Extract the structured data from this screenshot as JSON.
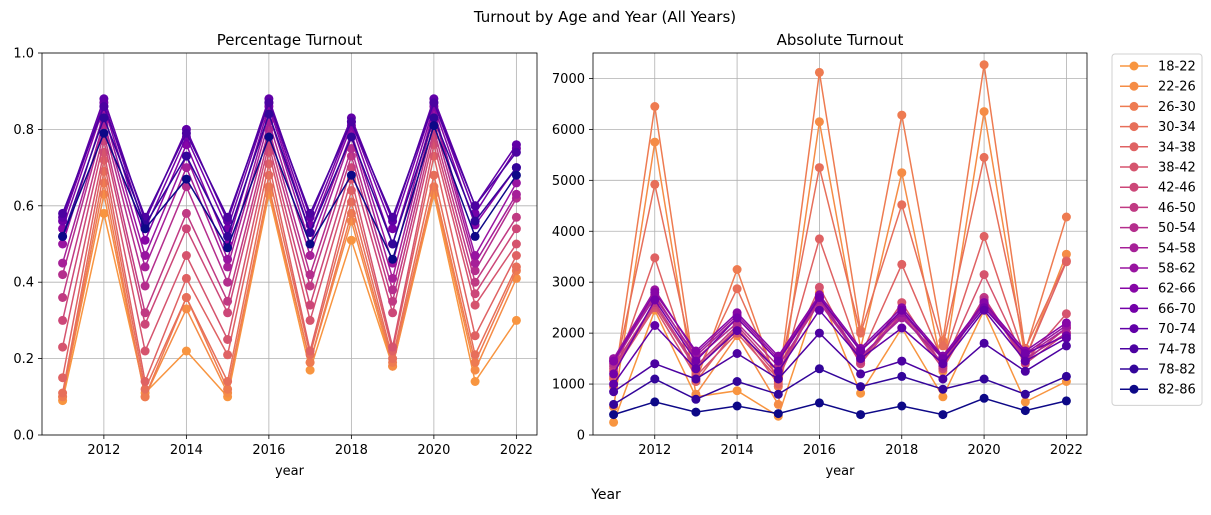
{
  "figure": {
    "title": "Turnout by Age and Year (All Years)",
    "supxlabel": "Year"
  },
  "chart_data": [
    {
      "type": "line",
      "title": "Percentage Turnout",
      "xlabel": "year",
      "ylabel": "",
      "xlim": [
        2010.5,
        2022.5
      ],
      "ylim": [
        0,
        1
      ],
      "xticks": [
        2012,
        2014,
        2016,
        2018,
        2020,
        2022
      ],
      "yticks": [
        0.0,
        0.2,
        0.4,
        0.6,
        0.8,
        1.0
      ],
      "ytick_labels": [
        "0.0",
        "0.2",
        "0.4",
        "0.6",
        "0.8",
        "1.0"
      ],
      "grid": true,
      "x": [
        2011,
        2012,
        2013,
        2014,
        2015,
        2016,
        2017,
        2018,
        2019,
        2020,
        2021,
        2022
      ],
      "series": [
        {
          "name": "18-22",
          "values": [
            0.09,
            0.58,
            0.11,
            0.22,
            0.1,
            0.63,
            0.17,
            0.51,
            0.18,
            0.63,
            0.14,
            0.3
          ]
        },
        {
          "name": "22-26",
          "values": [
            0.1,
            0.63,
            0.1,
            0.33,
            0.11,
            0.64,
            0.19,
            0.56,
            0.18,
            0.64,
            0.17,
            0.41
          ]
        },
        {
          "name": "26-30",
          "values": [
            0.1,
            0.66,
            0.1,
            0.36,
            0.12,
            0.65,
            0.19,
            0.58,
            0.19,
            0.65,
            0.19,
            0.43
          ]
        },
        {
          "name": "30-34",
          "values": [
            0.11,
            0.69,
            0.12,
            0.36,
            0.14,
            0.68,
            0.21,
            0.61,
            0.2,
            0.68,
            0.21,
            0.44
          ]
        },
        {
          "name": "34-38",
          "values": [
            0.15,
            0.72,
            0.14,
            0.41,
            0.21,
            0.71,
            0.22,
            0.64,
            0.22,
            0.73,
            0.26,
            0.47
          ]
        },
        {
          "name": "38-42",
          "values": [
            0.23,
            0.74,
            0.22,
            0.47,
            0.25,
            0.74,
            0.3,
            0.67,
            0.23,
            0.76,
            0.34,
            0.5
          ]
        },
        {
          "name": "42-46",
          "values": [
            0.3,
            0.77,
            0.29,
            0.54,
            0.32,
            0.76,
            0.34,
            0.7,
            0.32,
            0.78,
            0.37,
            0.54
          ]
        },
        {
          "name": "46-50",
          "values": [
            0.36,
            0.79,
            0.32,
            0.58,
            0.35,
            0.78,
            0.39,
            0.73,
            0.35,
            0.8,
            0.4,
            0.57
          ]
        },
        {
          "name": "50-54",
          "values": [
            0.42,
            0.81,
            0.39,
            0.65,
            0.4,
            0.8,
            0.42,
            0.75,
            0.38,
            0.82,
            0.43,
            0.62
          ]
        },
        {
          "name": "54-58",
          "values": [
            0.45,
            0.82,
            0.44,
            0.7,
            0.44,
            0.82,
            0.47,
            0.78,
            0.41,
            0.84,
            0.45,
            0.63
          ]
        },
        {
          "name": "58-62",
          "values": [
            0.5,
            0.84,
            0.47,
            0.73,
            0.46,
            0.84,
            0.5,
            0.79,
            0.45,
            0.85,
            0.47,
            0.66
          ]
        },
        {
          "name": "62-66",
          "values": [
            0.54,
            0.86,
            0.51,
            0.76,
            0.5,
            0.86,
            0.53,
            0.81,
            0.5,
            0.86,
            0.55,
            0.7
          ]
        },
        {
          "name": "66-70",
          "values": [
            0.56,
            0.87,
            0.54,
            0.78,
            0.54,
            0.87,
            0.55,
            0.82,
            0.54,
            0.87,
            0.58,
            0.75
          ]
        },
        {
          "name": "70-74",
          "values": [
            0.57,
            0.88,
            0.56,
            0.8,
            0.56,
            0.88,
            0.57,
            0.83,
            0.56,
            0.88,
            0.6,
            0.76
          ]
        },
        {
          "name": "74-78",
          "values": [
            0.58,
            0.86,
            0.57,
            0.79,
            0.57,
            0.87,
            0.58,
            0.82,
            0.57,
            0.87,
            0.6,
            0.74
          ]
        },
        {
          "name": "78-82",
          "values": [
            0.52,
            0.83,
            0.55,
            0.73,
            0.52,
            0.84,
            0.53,
            0.78,
            0.5,
            0.83,
            0.56,
            0.7
          ]
        },
        {
          "name": "82-86",
          "values": [
            0.52,
            0.79,
            0.54,
            0.67,
            0.49,
            0.78,
            0.5,
            0.68,
            0.46,
            0.81,
            0.52,
            0.68
          ]
        }
      ]
    },
    {
      "type": "line",
      "title": "Absolute Turnout",
      "xlabel": "year",
      "ylabel": "",
      "xlim": [
        2010.5,
        2022.5
      ],
      "ylim": [
        0,
        7500
      ],
      "xticks": [
        2012,
        2014,
        2016,
        2018,
        2020,
        2022
      ],
      "yticks": [
        0,
        1000,
        2000,
        3000,
        4000,
        5000,
        6000,
        7000
      ],
      "ytick_labels": [
        "0",
        "1000",
        "2000",
        "3000",
        "4000",
        "5000",
        "6000",
        "7000"
      ],
      "grid": true,
      "legend": "outside-right",
      "x": [
        2011,
        2012,
        2013,
        2014,
        2015,
        2016,
        2017,
        2018,
        2019,
        2020,
        2021,
        2022
      ],
      "series": [
        {
          "name": "18-22",
          "values": [
            250,
            2450,
            750,
            870,
            370,
            2800,
            820,
            2100,
            750,
            2450,
            650,
            1050
          ]
        },
        {
          "name": "22-26",
          "values": [
            550,
            5750,
            800,
            1950,
            600,
            6150,
            1700,
            5150,
            1250,
            6350,
            1500,
            3550
          ]
        },
        {
          "name": "26-30",
          "values": [
            950,
            6450,
            1050,
            3250,
            950,
            7120,
            2050,
            6280,
            1850,
            7270,
            1650,
            4280
          ]
        },
        {
          "name": "30-34",
          "values": [
            1100,
            4920,
            1200,
            2870,
            1050,
            5250,
            2000,
            4520,
            1750,
            5450,
            1700,
            3420
          ]
        },
        {
          "name": "34-38",
          "values": [
            1150,
            3480,
            1050,
            2100,
            1000,
            3850,
            1550,
            3350,
            1450,
            3900,
            1500,
            3400
          ]
        },
        {
          "name": "38-42",
          "values": [
            1250,
            2500,
            1150,
            2000,
            1100,
            2900,
            1400,
            2600,
            1350,
            3150,
            1450,
            2380
          ]
        },
        {
          "name": "42-46",
          "values": [
            1300,
            2550,
            1300,
            2100,
            1150,
            2750,
            1400,
            2400,
            1300,
            2700,
            1400,
            2000
          ]
        },
        {
          "name": "46-50",
          "values": [
            1350,
            2600,
            1350,
            2150,
            1250,
            2700,
            1450,
            2450,
            1350,
            2700,
            1450,
            2100
          ]
        },
        {
          "name": "50-54",
          "values": [
            1400,
            2750,
            1500,
            2200,
            1350,
            2600,
            1500,
            2350,
            1400,
            2650,
            1500,
            2000
          ]
        },
        {
          "name": "54-58",
          "values": [
            1450,
            2700,
            1550,
            2300,
            1450,
            2650,
            1550,
            2300,
            1500,
            2600,
            1550,
            2100
          ]
        },
        {
          "name": "58-62",
          "values": [
            1500,
            2850,
            1600,
            2350,
            1500,
            2700,
            1650,
            2400,
            1550,
            2550,
            1600,
            2150
          ]
        },
        {
          "name": "62-66",
          "values": [
            1450,
            2800,
            1650,
            2400,
            1550,
            2750,
            1700,
            2500,
            1550,
            2600,
            1650,
            2200
          ]
        },
        {
          "name": "66-70",
          "values": [
            1200,
            2650,
            1450,
            2300,
            1450,
            2700,
            1650,
            2450,
            1500,
            2500,
            1600,
            1950
          ]
        },
        {
          "name": "70-74",
          "values": [
            1000,
            2150,
            1300,
            2050,
            1250,
            2450,
            1500,
            2100,
            1400,
            2450,
            1450,
            1900
          ]
        },
        {
          "name": "74-78",
          "values": [
            850,
            1400,
            1100,
            1600,
            1100,
            2000,
            1200,
            1450,
            1100,
            1800,
            1250,
            1750
          ]
        },
        {
          "name": "78-82",
          "values": [
            600,
            1100,
            700,
            1050,
            800,
            1300,
            950,
            1150,
            900,
            1100,
            800,
            1150
          ]
        },
        {
          "name": "82-86",
          "values": [
            400,
            650,
            450,
            570,
            420,
            630,
            400,
            570,
            400,
            720,
            480,
            670
          ]
        }
      ]
    }
  ],
  "colors": [
    "#f89540",
    "#f58c46",
    "#ee7b51",
    "#e76f5a",
    "#df6263",
    "#d5546e",
    "#cc4778",
    "#c03a83",
    "#b42e8d",
    "#a62098",
    "#9814a0",
    "#8606a6",
    "#7301a8",
    "#6100a7",
    "#4c02a1",
    "#33059a",
    "#0d0887"
  ]
}
